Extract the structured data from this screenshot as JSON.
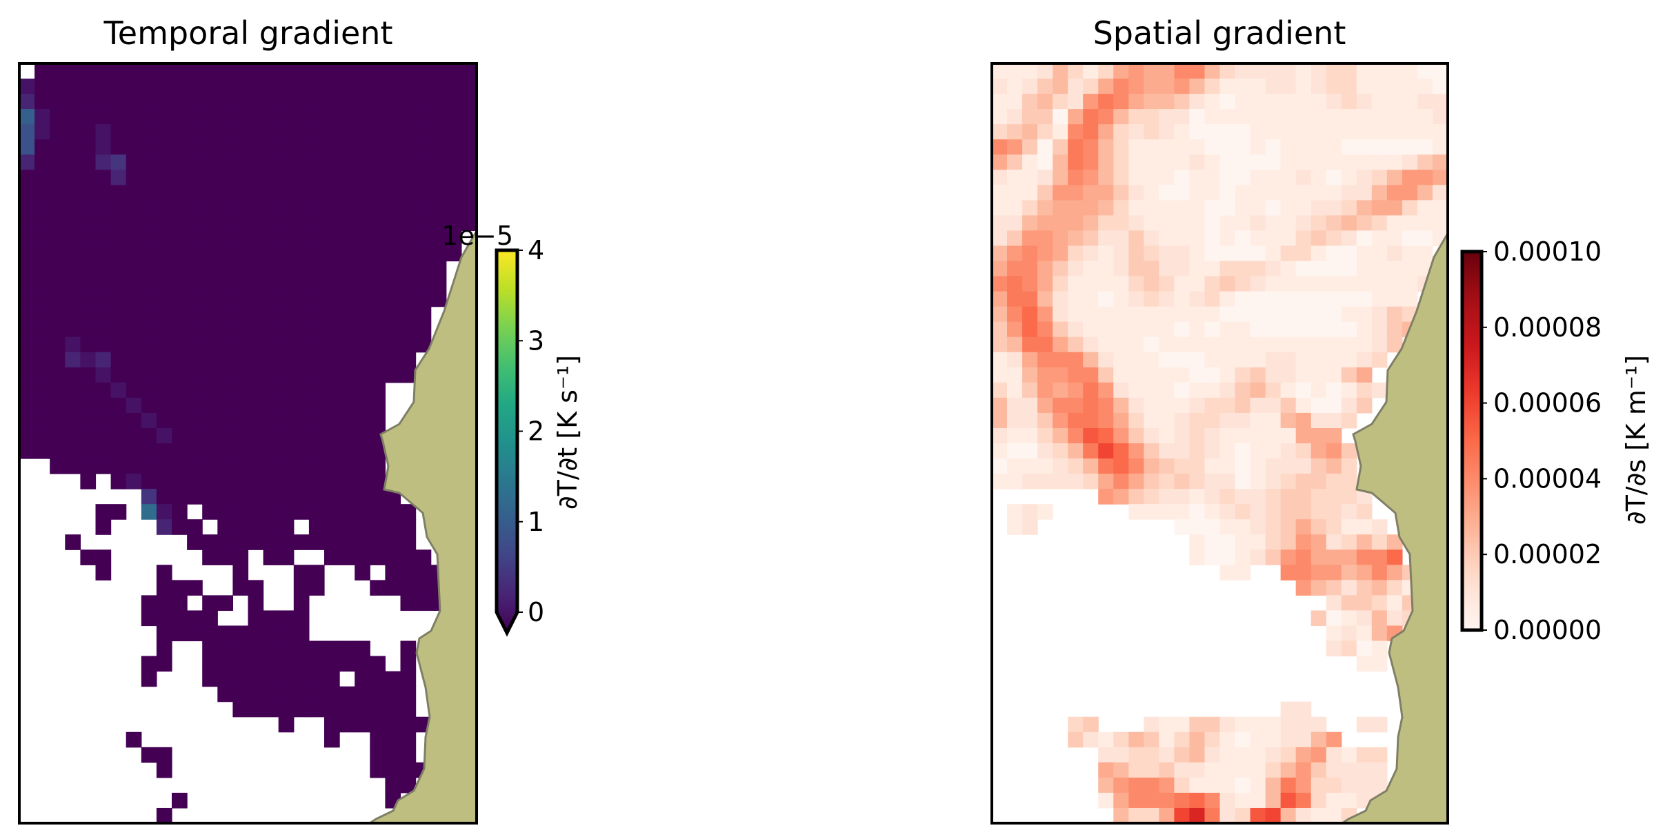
{
  "chart_data": [
    {
      "type": "heatmap",
      "title": "Temporal gradient",
      "colormap": "viridis",
      "colorbar": {
        "label": "∂T/∂t [K s⁻¹]",
        "ticks": [
          "0",
          "1",
          "2",
          "3",
          "4"
        ],
        "tick_values": [
          0,
          1,
          2,
          3,
          4
        ],
        "offset_text": "1e−5",
        "range": [
          0,
          4
        ],
        "extend": "min"
      },
      "vmin": 0,
      "vmax": 4e-05,
      "cell_unit": 2e-06,
      "grid_encoding": "each char = base-36 digit times cell_unit; '.' = no data",
      "grid": [
        ".00000000000000000000000000000",
        "100000000000000000000000000000",
        "200000000000000000000000000000",
        "610000000000000000000000000000",
        "510001000000000000000000000000",
        "500001000000000000000000000000",
        "200002300000000000000000000000",
        "000000200000000000000000000000",
        "000000000000000000000000000000",
        "000000000000000000000000000000",
        "000000000000000000000000000000",
        "00000000000000000000000000000.",
        "00000000000000000000000000000.",
        "0000000000000000000000000000..",
        "0000000000000000000000000000..",
        "0000000000000000000000000000..",
        "000000000000000000000000000...",
        "000000000000000000000000000...",
        "000100000000000000000000000...",
        "00021200000000000000000000....",
        "00000100000000000000000000....",
        "000000100000000000000000......",
        "000000010000000000000000......",
        "000000001000000000000000......",
        "000000000100000000000000......",
        "0000000000000000000000000.....",
        "..0000000000000000000000......",
        "....0.010000000000000000......",
        "........30000000000000000.....",
        ".....00.710.00000000000000....",
        ".....0...200.00000.0000000....",
        "...0.......000000000000000....",
        "....00......000.00..0000000...",
        ".....0...0....0...00..0.0000..",
        ".........000..00..00...00000..",
        "........000.00.0..0......000..",
        "........00000..0000...........",
        ".........0000000000...........",
        ".........0..00000000000..0....",
        "........00..000000000000.0....",
        "........0...000000000.0000....",
        ".............0000000000000....",
        "..............000000000000....",
        ".................0..0000000...",
        ".......0............0..000....",
        "........00.............000....",
        ".........0.............0000...",
        "........................00....",
        "..........0.............0.....",
        ".........0...................."
      ]
    },
    {
      "type": "heatmap",
      "title": "Spatial gradient",
      "colormap": "Reds",
      "colorbar": {
        "label": "∂T/∂s [K m⁻¹]",
        "ticks": [
          "0.00000",
          "0.00002",
          "0.00004",
          "0.00006",
          "0.00008",
          "0.00010"
        ],
        "tick_values": [
          0,
          2e-05,
          4e-05,
          6e-05,
          8e-05,
          0.0001
        ],
        "range": [
          0,
          0.0001
        ],
        "extend": "neither"
      },
      "vmin": 0,
      "vmax": 0.0001,
      "cell_unit": 5e-06,
      "grid_encoding": "each char = base-36 digit times cell_unit; '.' = no data",
      "grid": [
        "111253136766885322221233111100",
        "212452368766753111221233111110",
        "114532798655421011111123211122",
        "124406985332201111111111111112",
        "345318963232100001111111111111",
        "874049853111110001011110000001",
        "641059853111121000011111111245",
        "211258753111011001112101235776",
        "111477664210011011111112257752",
        "113566653111110011011223566311",
        "225666533211110112112345431111",
        "247765422421110101113432011001",
        "57876321243221000013310011211.",
        "68864211244221133321000011111.",
        "89863111134311343211111111112.",
        "699521101232123100000000011 1..",
        "58a72111111111100000000112 43..",
        "47a8421111110101100000001245..",
        "459964211101111111111111124....",
        "12688852111000111122111123....",
        "1157788411111001342211146.....",
        "31476797211101124531010132....",
        "5226889852111233422410024.....",
        "522479986311233221156223......",
        "211358ba742123211111666.......",
        "1002359ca74223210112367 4......",
        "01112359a854331101222453......",
        "11222236864343220123443 3......",
        ".......764322123223443332.....",
        ".121.....1111012323443323.....",
        ".12.........00011234643112....",
        ".............10011347623535...",
        ".............100124786668 8a...",
        "...............11..887756864..",
        "....................75424531..",
        "......................244314..",
        ".....................4012523..",
        "......................12157...",
        "......................2301....",
        "........................11....",
        "..............................",
        "..............................",
        "...................22.........",
        ".....34...211442111222..22....",
        ".....421354135310112257.......",
        ".......2233245211123672133....",
        ".......6533422111135742222....",
        ".......5788731110159733222....",
        ".......168889a82115b93112 2.....",
        "........5336ce923bc52113......"
      ]
    }
  ],
  "colors": {
    "land_fill": "#bfbe81",
    "land_edge": "#7f7f66",
    "nodata": "#ffffff",
    "axes_edge": "#000000"
  }
}
